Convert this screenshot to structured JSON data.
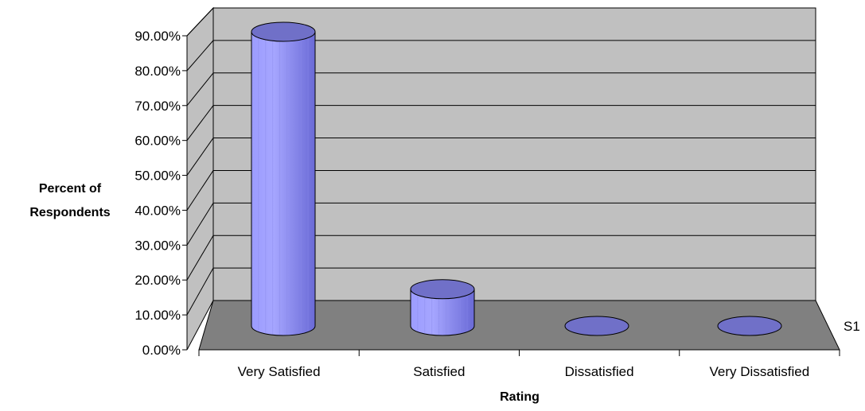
{
  "chart_data": {
    "type": "bar",
    "style": "3d-cylinder",
    "categories": [
      "Very Satisfied",
      "Satisfied",
      "Dissatisfied",
      "Very Dissatisfied"
    ],
    "series": [
      {
        "name": "S1",
        "values": [
          88.9,
          11.1,
          0,
          0
        ]
      }
    ],
    "y_ticks": [
      "0.00%",
      "10.00%",
      "20.00%",
      "30.00%",
      "40.00%",
      "50.00%",
      "60.00%",
      "70.00%",
      "80.00%",
      "90.00%"
    ],
    "ylim": [
      0,
      90
    ],
    "xlabel": "Rating",
    "ylabel_lines": [
      "Percent of",
      "Respondents"
    ],
    "grid": true,
    "colors": {
      "wall": "#c0c0c0",
      "floor": "#808080",
      "bar_top": "#7070c8",
      "bar_light": "#a6a6ff",
      "bar_dark": "#6a6ad6"
    }
  }
}
